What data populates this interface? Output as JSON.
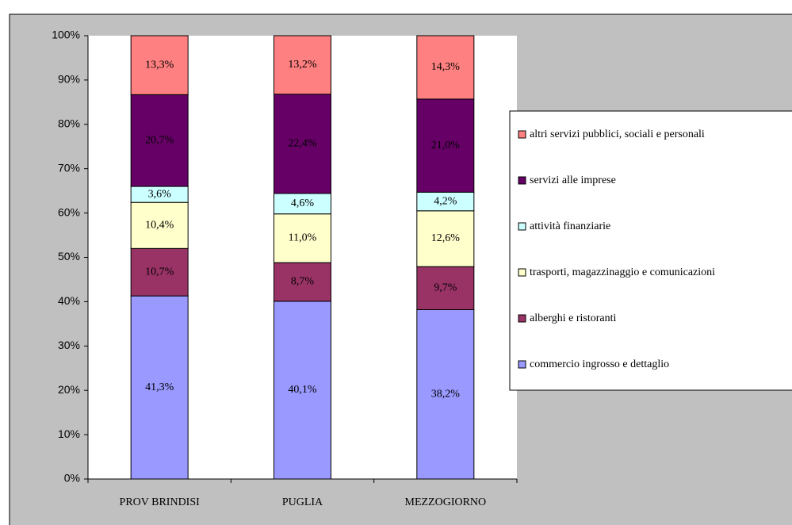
{
  "chart_data": {
    "type": "stacked_bar",
    "categories": [
      "PROV BRINDISI",
      "PUGLIA",
      "MEZZOGIORNO"
    ],
    "series": [
      {
        "name": "commercio ingrosso e dettaglio",
        "color": "#9999ff",
        "values": [
          41.3,
          40.1,
          38.2
        ],
        "value_labels": [
          "41,3%",
          "40,1%",
          "38,2%"
        ]
      },
      {
        "name": "alberghi e ristoranti",
        "color": "#993366",
        "values": [
          10.7,
          8.7,
          9.7
        ],
        "value_labels": [
          "10,7%",
          "8,7%",
          "9,7%"
        ]
      },
      {
        "name": "trasporti, magazzinaggio e comunicazioni",
        "color": "#ffffcc",
        "values": [
          10.4,
          11.0,
          12.6
        ],
        "value_labels": [
          "10,4%",
          "11,0%",
          "12,6%"
        ]
      },
      {
        "name": "attività finanziarie",
        "color": "#ccffff",
        "values": [
          3.6,
          4.6,
          4.2
        ],
        "value_labels": [
          "3,6%",
          "4,6%",
          "4,2%"
        ]
      },
      {
        "name": "servizi alle imprese",
        "color": "#660066",
        "values": [
          20.7,
          22.4,
          21.0
        ],
        "value_labels": [
          "20,7%",
          "22,4%",
          "21,0%"
        ]
      },
      {
        "name": "altri servizi pubblici, sociali e personali",
        "color": "#ff8080",
        "values": [
          13.3,
          13.2,
          14.3
        ],
        "value_labels": [
          "13,3%",
          "13,2%",
          "14,3%"
        ]
      }
    ],
    "ylim": [
      0,
      100
    ],
    "yticks": [
      {
        "value": 0,
        "label": "0%"
      },
      {
        "value": 10,
        "label": "10%"
      },
      {
        "value": 20,
        "label": "20%"
      },
      {
        "value": 30,
        "label": "30%"
      },
      {
        "value": 40,
        "label": "40%"
      },
      {
        "value": 50,
        "label": "50%"
      },
      {
        "value": 60,
        "label": "60%"
      },
      {
        "value": 70,
        "label": "70%"
      },
      {
        "value": 80,
        "label": "80%"
      },
      {
        "value": 90,
        "label": "90%"
      },
      {
        "value": 100,
        "label": "100%"
      }
    ],
    "legend": "right"
  }
}
